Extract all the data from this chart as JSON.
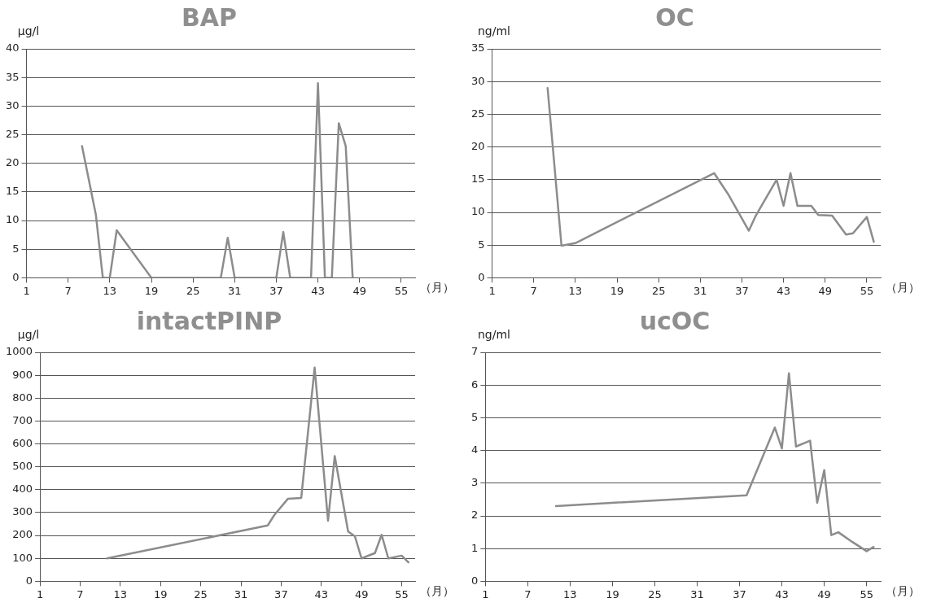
{
  "chart_data": [
    {
      "type": "line",
      "title": "BAP",
      "ylabel": "μg/l",
      "xlabel": "（月）",
      "x": [
        9,
        11,
        12,
        13,
        14,
        19,
        29,
        30,
        31,
        37,
        38,
        39,
        42,
        43,
        44,
        45,
        46,
        47,
        48
      ],
      "series": [
        {
          "color": "#8c8c8c",
          "values": [
            23,
            11,
            0,
            0,
            8.3,
            0,
            0,
            7,
            0,
            0,
            8,
            0,
            0,
            34,
            0,
            0,
            27,
            23,
            0
          ]
        }
      ],
      "xlim": [
        1,
        57
      ],
      "xticks": [
        1,
        7,
        13,
        19,
        25,
        31,
        37,
        43,
        49,
        55
      ],
      "ylim": [
        0,
        40
      ],
      "yticks": [
        0,
        5,
        10,
        15,
        20,
        25,
        30,
        35,
        40
      ],
      "grid": "y",
      "legend": false,
      "marker": "none",
      "line_style": "solid"
    },
    {
      "type": "line",
      "title": "OC",
      "ylabel": "ng/ml",
      "xlabel": "（月）",
      "x": [
        9,
        11,
        13,
        33,
        35,
        38,
        39,
        42,
        43,
        44,
        45,
        47,
        48,
        50,
        52,
        53,
        55,
        56
      ],
      "series": [
        {
          "color": "#8c8c8c",
          "values": [
            29,
            4.9,
            5.3,
            16,
            12.8,
            7.2,
            9.5,
            15,
            11,
            16,
            11,
            11,
            9.6,
            9.5,
            6.6,
            6.8,
            9.3,
            5.5
          ]
        }
      ],
      "xlim": [
        1,
        57
      ],
      "xticks": [
        1,
        7,
        13,
        19,
        25,
        31,
        37,
        43,
        49,
        55
      ],
      "ylim": [
        0,
        35
      ],
      "yticks": [
        0,
        5,
        10,
        15,
        20,
        25,
        30,
        35
      ],
      "grid": "y",
      "legend": false,
      "marker": "none",
      "line_style": "solid"
    },
    {
      "type": "line",
      "title": "intactPINP",
      "ylabel": "μg/l",
      "xlabel": "（月）",
      "x": [
        11,
        35,
        36,
        38,
        40,
        42,
        44,
        45,
        47,
        48,
        49,
        51,
        52,
        53,
        55,
        56
      ],
      "series": [
        {
          "color": "#8c8c8c",
          "values": [
            100,
            244,
            290,
            360,
            364,
            933,
            264,
            547,
            217,
            197,
            100,
            123,
            203,
            100,
            112,
            83
          ]
        }
      ],
      "xlim": [
        1,
        57
      ],
      "xticks": [
        1,
        7,
        13,
        19,
        25,
        31,
        37,
        43,
        49,
        55
      ],
      "ylim": [
        0,
        1000
      ],
      "yticks": [
        0,
        100,
        200,
        300,
        400,
        500,
        600,
        700,
        800,
        900,
        1000
      ],
      "grid": "y",
      "legend": false,
      "marker": "none",
      "line_style": "solid"
    },
    {
      "type": "line",
      "title": "ucOC",
      "ylabel": "ng/ml",
      "xlabel": "（月）",
      "x": [
        11,
        38,
        42,
        43,
        44,
        45,
        47,
        48,
        49,
        50,
        51,
        53,
        55,
        56
      ],
      "series": [
        {
          "color": "#8c8c8c",
          "values": [
            2.3,
            2.63,
            4.7,
            4.06,
            6.36,
            4.12,
            4.3,
            2.4,
            3.4,
            1.41,
            1.5,
            1.2,
            0.92,
            1.05
          ]
        }
      ],
      "xlim": [
        1,
        57
      ],
      "xticks": [
        1,
        7,
        13,
        19,
        25,
        31,
        37,
        43,
        49,
        55
      ],
      "ylim": [
        0,
        7
      ],
      "yticks": [
        0,
        1,
        2,
        3,
        4,
        5,
        6,
        7
      ],
      "grid": "y",
      "legend": false,
      "marker": "none",
      "line_style": "solid"
    }
  ]
}
